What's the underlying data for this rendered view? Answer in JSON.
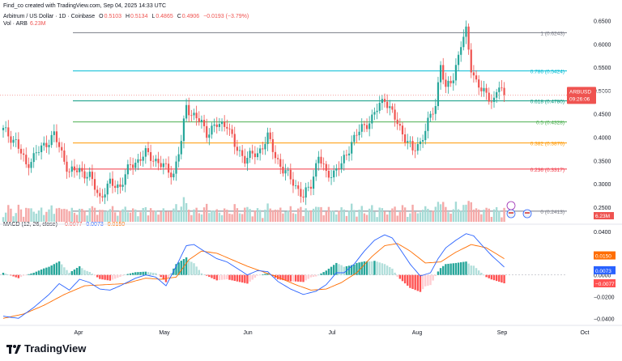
{
  "header": {
    "credit": "Find_co created with TradingView.com, Sep 04, 2025 14:33 UTC",
    "symbol_line": "Arbitrum / US Dollar · 1D · Coinbase",
    "open_label": "O",
    "open": "0.5103",
    "high_label": "H",
    "high": "0.5134",
    "low_label": "L",
    "low": "0.4865",
    "close_label": "C",
    "close": "0.4906",
    "change": "−0.0193 (−3.79%)",
    "vol_label": "Vol · ARB",
    "vol": "6.23M"
  },
  "macd_legend": {
    "title": "MACD (12, 26, close)",
    "hist": "−0.0077",
    "macd": "0.0073",
    "signal": "0.0150"
  },
  "brand": {
    "name": "TradingView"
  },
  "colors": {
    "up": "#26a69a",
    "down": "#ef5350",
    "up_vol": "#a5dbd6",
    "down_vol": "#f5a9a8",
    "macd_line": "#2962ff",
    "signal_line": "#ff6d00",
    "hist_up_strong": "#26a69a",
    "hist_up_weak": "#b2dfdb",
    "hist_down_strong": "#ff5252",
    "hist_down_weak": "#ffcdd2"
  },
  "chart_data": {
    "type": "candlestick",
    "title": "Arbitrum / US Dollar · 1D · Coinbase",
    "x_axis_labels": [
      "Apr",
      "May",
      "Jun",
      "Jul",
      "Aug",
      "Sep",
      "Oct"
    ],
    "price_axis": {
      "ticks": [
        "0.6500",
        "0.6000",
        "0.5500",
        "0.5000",
        "0.4500",
        "0.4000",
        "0.3500",
        "0.3000",
        "0.2500"
      ],
      "range": [
        0.215,
        0.665
      ]
    },
    "fib_levels": [
      {
        "label": "1 (0.6243)",
        "value": 0.6243,
        "color": "#787b86"
      },
      {
        "label": "0.786 (0.5424)",
        "value": 0.5424,
        "color": "#00bcd4"
      },
      {
        "label": "0.618 (0.4780)",
        "value": 0.478,
        "color": "#089981"
      },
      {
        "label": "0.5 (0.4328)",
        "value": 0.4328,
        "color": "#4caf50"
      },
      {
        "label": "0.382 (0.3876)",
        "value": 0.3876,
        "color": "#ff9800"
      },
      {
        "label": "0.236 (0.3317)",
        "value": 0.3317,
        "color": "#f23645"
      },
      {
        "label": "0 (0.2413)",
        "value": 0.2413,
        "color": "#787b86"
      }
    ],
    "last_price_tag": {
      "symbol": "ARBUSD",
      "price": "0.4906",
      "countdown": "09:26:06"
    },
    "volume_tag": "6.23M",
    "anchors": [
      [
        0,
        0.415
      ],
      [
        5,
        0.39
      ],
      [
        9,
        0.34
      ],
      [
        13,
        0.365
      ],
      [
        20,
        0.405
      ],
      [
        26,
        0.325
      ],
      [
        30,
        0.33
      ],
      [
        34,
        0.315
      ],
      [
        38,
        0.27
      ],
      [
        42,
        0.3
      ],
      [
        46,
        0.295
      ],
      [
        50,
        0.34
      ],
      [
        53,
        0.35
      ],
      [
        56,
        0.365
      ],
      [
        59,
        0.355
      ],
      [
        62,
        0.34
      ],
      [
        65,
        0.33
      ],
      [
        67,
        0.32
      ],
      [
        70,
        0.39
      ],
      [
        72,
        0.47
      ],
      [
        74,
        0.45
      ],
      [
        78,
        0.43
      ],
      [
        80,
        0.41
      ],
      [
        84,
        0.425
      ],
      [
        88,
        0.43
      ],
      [
        91,
        0.38
      ],
      [
        95,
        0.355
      ],
      [
        100,
        0.365
      ],
      [
        104,
        0.4
      ],
      [
        107,
        0.36
      ],
      [
        110,
        0.33
      ],
      [
        114,
        0.305
      ],
      [
        118,
        0.27
      ],
      [
        121,
        0.3
      ],
      [
        124,
        0.36
      ],
      [
        127,
        0.32
      ],
      [
        130,
        0.325
      ],
      [
        133,
        0.34
      ],
      [
        137,
        0.39
      ],
      [
        141,
        0.42
      ],
      [
        145,
        0.44
      ],
      [
        148,
        0.47
      ],
      [
        150,
        0.485
      ],
      [
        152,
        0.46
      ],
      [
        155,
        0.43
      ],
      [
        158,
        0.4
      ],
      [
        161,
        0.37
      ],
      [
        164,
        0.39
      ],
      [
        167,
        0.43
      ],
      [
        170,
        0.47
      ],
      [
        172,
        0.56
      ],
      [
        174,
        0.5
      ],
      [
        177,
        0.53
      ],
      [
        180,
        0.6
      ],
      [
        182,
        0.625
      ],
      [
        184,
        0.55
      ],
      [
        186,
        0.52
      ],
      [
        188,
        0.5
      ],
      [
        190,
        0.49
      ],
      [
        193,
        0.48
      ],
      [
        195,
        0.51
      ],
      [
        197,
        0.49
      ]
    ],
    "price_x_range": [
      0,
      200
    ],
    "macd_axis": {
      "ticks": [
        "0.0400",
        "0.0200",
        "0.0000",
        "−0.0200",
        "−0.0400"
      ],
      "range": [
        -0.045,
        0.046
      ]
    },
    "macd_tags": {
      "signal": "0.0150",
      "macd": "0.0073",
      "hist": "−0.0077"
    },
    "macd_line": [
      [
        0,
        -0.038
      ],
      [
        6,
        -0.04
      ],
      [
        12,
        -0.03
      ],
      [
        18,
        -0.018
      ],
      [
        22,
        -0.008
      ],
      [
        26,
        -0.014
      ],
      [
        30,
        -0.004
      ],
      [
        34,
        -0.007
      ],
      [
        38,
        -0.013
      ],
      [
        42,
        -0.014
      ],
      [
        46,
        -0.01
      ],
      [
        52,
        -0.003
      ],
      [
        56,
        0.0
      ],
      [
        60,
        -0.002
      ],
      [
        64,
        -0.01
      ],
      [
        68,
        0.008
      ],
      [
        72,
        0.027
      ],
      [
        75,
        0.028
      ],
      [
        79,
        0.022
      ],
      [
        84,
        0.015
      ],
      [
        88,
        0.012
      ],
      [
        92,
        0.006
      ],
      [
        96,
        0.0
      ],
      [
        100,
        0.004
      ],
      [
        104,
        0.003
      ],
      [
        108,
        -0.006
      ],
      [
        113,
        -0.013
      ],
      [
        118,
        -0.018
      ],
      [
        123,
        -0.015
      ],
      [
        127,
        -0.009
      ],
      [
        131,
        0.002
      ],
      [
        134,
        0.002
      ],
      [
        138,
        0.01
      ],
      [
        142,
        0.022
      ],
      [
        146,
        0.032
      ],
      [
        150,
        0.037
      ],
      [
        153,
        0.034
      ],
      [
        156,
        0.024
      ],
      [
        160,
        0.01
      ],
      [
        164,
        -0.001
      ],
      [
        168,
        0.002
      ],
      [
        171,
        0.015
      ],
      [
        174,
        0.025
      ],
      [
        178,
        0.032
      ],
      [
        182,
        0.038
      ],
      [
        185,
        0.036
      ],
      [
        188,
        0.028
      ],
      [
        192,
        0.018
      ],
      [
        197,
        0.0073
      ]
    ],
    "signal_line": [
      [
        0,
        -0.04
      ],
      [
        8,
        -0.036
      ],
      [
        16,
        -0.028
      ],
      [
        24,
        -0.018
      ],
      [
        32,
        -0.01
      ],
      [
        40,
        -0.009
      ],
      [
        48,
        -0.008
      ],
      [
        56,
        -0.003
      ],
      [
        62,
        -0.004
      ],
      [
        68,
        -0.002
      ],
      [
        73,
        0.014
      ],
      [
        78,
        0.022
      ],
      [
        84,
        0.02
      ],
      [
        90,
        0.014
      ],
      [
        96,
        0.008
      ],
      [
        102,
        0.003
      ],
      [
        108,
        -0.002
      ],
      [
        115,
        -0.009
      ],
      [
        121,
        -0.014
      ],
      [
        127,
        -0.013
      ],
      [
        133,
        -0.007
      ],
      [
        139,
        0.002
      ],
      [
        145,
        0.017
      ],
      [
        150,
        0.027
      ],
      [
        155,
        0.029
      ],
      [
        160,
        0.022
      ],
      [
        166,
        0.011
      ],
      [
        172,
        0.012
      ],
      [
        178,
        0.021
      ],
      [
        184,
        0.028
      ],
      [
        190,
        0.025
      ],
      [
        197,
        0.015
      ]
    ]
  }
}
